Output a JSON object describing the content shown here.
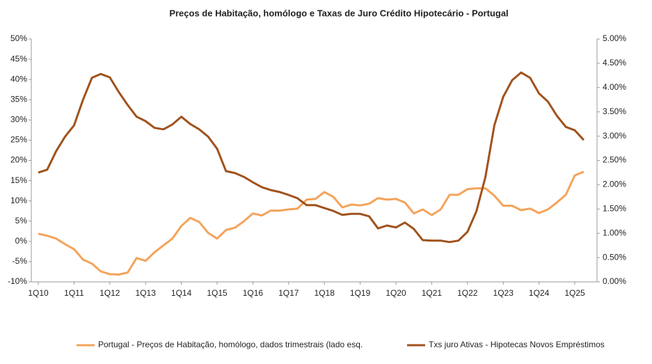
{
  "chart_data": {
    "type": "line",
    "title": "Preços de Habitação, homólogo e Taxas de Juro Crédito Hipotecário  -  Portugal",
    "categories": [
      "1Q10",
      null,
      null,
      null,
      "1Q11",
      null,
      null,
      null,
      "1Q12",
      null,
      null,
      null,
      "1Q13",
      null,
      null,
      null,
      "1Q14",
      null,
      null,
      null,
      "1Q15",
      null,
      null,
      null,
      "1Q16",
      null,
      null,
      null,
      "1Q17",
      null,
      null,
      null,
      "1Q18",
      null,
      null,
      null,
      "1Q19",
      null,
      null,
      null,
      "1Q20",
      null,
      null,
      null,
      "1Q21",
      null,
      null,
      null,
      "1Q22",
      null,
      null,
      null,
      "1Q23",
      null,
      null,
      null,
      "1Q24",
      null,
      null,
      null,
      "1Q25",
      null
    ],
    "series": [
      {
        "name": "Portugal - Preços de Habitação, homólogo, dados trimestrais (lado esq.",
        "color": "#f4a35a",
        "axis": "y",
        "values": [
          1.9,
          1.4,
          0.7,
          -0.7,
          -1.9,
          -4.5,
          -5.5,
          -7.4,
          -8.1,
          -8.2,
          -7.7,
          -4.1,
          -4.8,
          -2.7,
          -1.0,
          0.7,
          3.8,
          5.8,
          4.8,
          2.1,
          0.7,
          2.8,
          3.4,
          5.0,
          6.9,
          6.4,
          7.6,
          7.6,
          7.9,
          8.1,
          10.3,
          10.5,
          12.2,
          11.0,
          8.4,
          9.1,
          8.9,
          9.3,
          10.7,
          10.3,
          10.5,
          9.6,
          6.9,
          7.9,
          6.5,
          7.9,
          11.5,
          11.5,
          12.9,
          13.1,
          13.1,
          11.3,
          8.8,
          8.8,
          7.7,
          8.1,
          7.0,
          7.9,
          9.6,
          11.5,
          16.3,
          17.2
        ]
      },
      {
        "name": "Txs juro Ativas - Hipotecas Novos Empréstimos",
        "color": "#a0521c",
        "axis": "y2",
        "values": [
          2.25,
          2.31,
          2.69,
          2.99,
          3.22,
          3.75,
          4.2,
          4.28,
          4.21,
          3.91,
          3.64,
          3.4,
          3.31,
          3.17,
          3.14,
          3.24,
          3.4,
          3.25,
          3.14,
          2.99,
          2.74,
          2.28,
          2.24,
          2.16,
          2.05,
          1.95,
          1.89,
          1.85,
          1.79,
          1.72,
          1.58,
          1.58,
          1.52,
          1.46,
          1.38,
          1.4,
          1.4,
          1.35,
          1.1,
          1.16,
          1.12,
          1.22,
          1.09,
          0.86,
          0.85,
          0.85,
          0.82,
          0.85,
          1.03,
          1.45,
          2.15,
          3.22,
          3.81,
          4.15,
          4.31,
          4.2,
          3.88,
          3.71,
          3.42,
          3.19,
          3.12,
          2.92
        ]
      }
    ],
    "ylim": [
      -10,
      50
    ],
    "yticks": [
      {
        "value": -10,
        "label": "-10%"
      },
      {
        "value": -5,
        "label": "-5%"
      },
      {
        "value": 0,
        "label": "0%"
      },
      {
        "value": 5,
        "label": "5%"
      },
      {
        "value": 10,
        "label": "10%"
      },
      {
        "value": 15,
        "label": "15%"
      },
      {
        "value": 20,
        "label": "20%"
      },
      {
        "value": 25,
        "label": "25%"
      },
      {
        "value": 30,
        "label": "30%"
      },
      {
        "value": 35,
        "label": "35%"
      },
      {
        "value": 40,
        "label": "40%"
      },
      {
        "value": 45,
        "label": "45%"
      },
      {
        "value": 50,
        "label": "50%"
      }
    ],
    "y2lim": [
      0,
      5
    ],
    "y2ticks": [
      {
        "value": 0,
        "label": "0.00%"
      },
      {
        "value": 0.5,
        "label": "0.50%"
      },
      {
        "value": 1,
        "label": "1.00%"
      },
      {
        "value": 1.5,
        "label": "1.50%"
      },
      {
        "value": 2,
        "label": "2.00%"
      },
      {
        "value": 2.5,
        "label": "2.50%"
      },
      {
        "value": 3,
        "label": "3.00%"
      },
      {
        "value": 3.5,
        "label": "3.50%"
      },
      {
        "value": 4,
        "label": "4.00%"
      },
      {
        "value": 4.5,
        "label": "4.50%"
      },
      {
        "value": 5,
        "label": "5.00%"
      }
    ],
    "grid": false,
    "legend": "bottom"
  }
}
